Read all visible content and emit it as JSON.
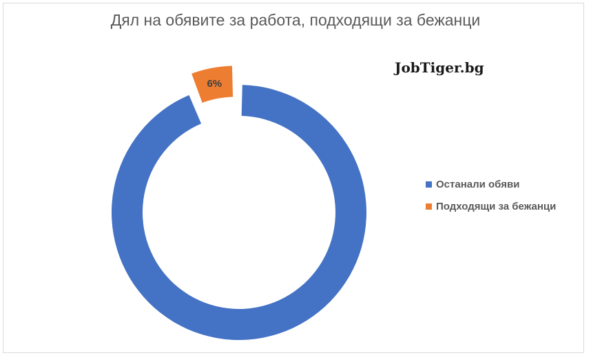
{
  "chart_data": {
    "type": "pie",
    "variant": "doughnut",
    "title": "Дял на обявите за работа, подходящи за бежанци",
    "categories": [
      "Останали обяви",
      "Подходящи за бежанци"
    ],
    "values": [
      94,
      6
    ],
    "data_labels": [
      "",
      "6%"
    ],
    "colors": [
      "#4472c4",
      "#ed7d31"
    ],
    "exploded": [
      false,
      true
    ],
    "legend_position": "right",
    "series": [
      {
        "values": [
          94,
          6
        ]
      }
    ]
  },
  "watermark": {
    "text": "JobTiger.bg"
  }
}
